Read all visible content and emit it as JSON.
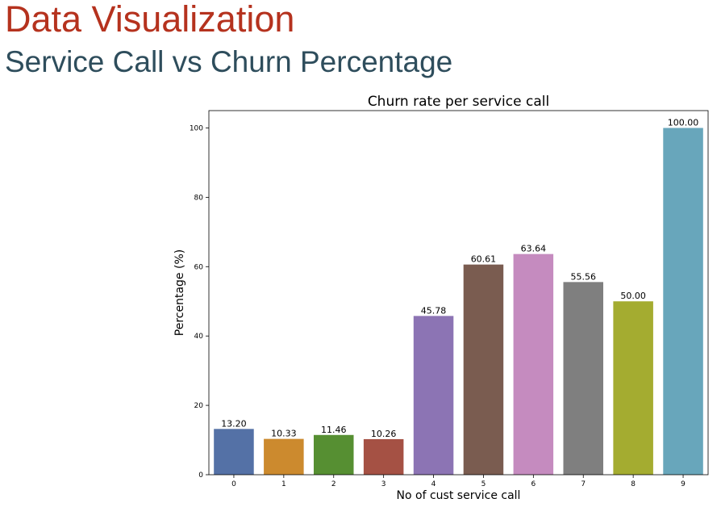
{
  "slide": {
    "title": "Data Visualization",
    "subtitle": "Service Call vs Churn Percentage",
    "title_color": "#b5321e",
    "subtitle_color": "#2e4d5c"
  },
  "chart_data": {
    "type": "bar",
    "title": "Churn rate per service call",
    "xlabel": "No of cust service call",
    "ylabel": "Percentage (%)",
    "categories": [
      "0",
      "1",
      "2",
      "3",
      "4",
      "5",
      "6",
      "7",
      "8",
      "9"
    ],
    "values": [
      13.2,
      10.33,
      11.46,
      10.26,
      45.78,
      60.61,
      63.64,
      55.56,
      50.0,
      100.0
    ],
    "value_labels": [
      "13.20",
      "10.33",
      "11.46",
      "10.26",
      "45.78",
      "60.61",
      "63.64",
      "55.56",
      "50.00",
      "100.00"
    ],
    "colors": [
      "#5471a6",
      "#cc8a2e",
      "#568f32",
      "#a55144",
      "#8c74b4",
      "#7a5c50",
      "#c58bbf",
      "#7f7f7f",
      "#a4ac30",
      "#68a6bb"
    ],
    "yticks": [
      0,
      20,
      40,
      60,
      80,
      100
    ],
    "ylim": [
      0,
      105
    ],
    "grid": false
  }
}
